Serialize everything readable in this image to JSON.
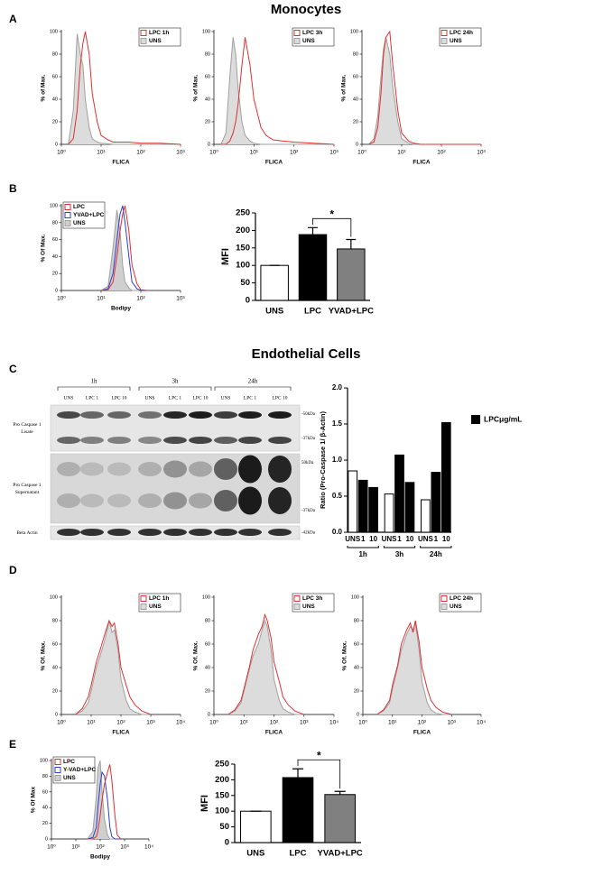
{
  "figure": {
    "headings": [
      "Monocytes",
      "Endothelial Cells"
    ],
    "panels": [
      "A",
      "B",
      "C",
      "D",
      "E"
    ]
  },
  "blot": {
    "time_points": [
      "1h",
      "3h",
      "24h"
    ],
    "lanes": [
      "UNS",
      "LPC 1",
      "LPC 10",
      "UNS",
      "LPC 1",
      "LPC 10",
      "UNS",
      "LPC 1",
      "LPC 10"
    ],
    "rows": [
      {
        "label": [
          "Pro Caspase 1",
          "Lisate"
        ],
        "markers": [
          "-50kDa",
          "-37kDa"
        ]
      },
      {
        "label": [
          "Pro Caspase 1",
          "Supernatant"
        ],
        "markers": [
          "50kDa",
          "-37kDa"
        ]
      },
      {
        "label": [
          "Beta Actin"
        ],
        "markers": [
          "-42kDa"
        ]
      }
    ]
  },
  "chart_data": [
    {
      "type": "line",
      "xlog": true,
      "xlabel": "FLICA",
      "ylabel": "% of Max.",
      "legend": "upper right",
      "xlim": [
        1,
        1000
      ],
      "xticks": [
        {
          "value": 1,
          "label": "10⁰"
        },
        {
          "value": 10,
          "label": "10¹"
        },
        {
          "value": 100,
          "label": "10²"
        },
        {
          "value": 1000,
          "label": "10³"
        }
      ],
      "ylim": [
        0,
        100
      ],
      "yticks": [
        0,
        20,
        40,
        60,
        80,
        100
      ],
      "x": [
        1.5,
        2,
        2.5,
        3,
        3.5,
        4,
        5,
        6,
        8,
        10,
        15,
        20,
        30,
        50,
        100,
        300,
        1000
      ],
      "series": [
        {
          "name": "LPC 1h",
          "color": "#e03030",
          "values": [
            0,
            5,
            30,
            70,
            90,
            100,
            80,
            45,
            20,
            8,
            4,
            2,
            2,
            2,
            1,
            1,
            0
          ]
        },
        {
          "name": "UNS",
          "color": "#a0a0a0",
          "fill": "#dcdcdc",
          "values": [
            0,
            30,
            98,
            80,
            70,
            40,
            15,
            5,
            2,
            1,
            0.5,
            0,
            0,
            0,
            0,
            0,
            0
          ]
        }
      ]
    },
    {
      "type": "line",
      "xlog": true,
      "xlabel": "FLICA",
      "ylabel": "% of Max.",
      "legend": "upper right",
      "xlim": [
        1,
        1000
      ],
      "xticks": [
        {
          "value": 1,
          "label": "10⁰"
        },
        {
          "value": 10,
          "label": "10¹"
        },
        {
          "value": 100,
          "label": "10²"
        },
        {
          "value": 1000,
          "label": "10³"
        }
      ],
      "ylim": [
        0,
        100
      ],
      "yticks": [
        0,
        20,
        40,
        60,
        80,
        100
      ],
      "x": [
        1.5,
        2,
        2.5,
        3,
        3.5,
        4,
        5,
        6,
        8,
        10,
        15,
        20,
        30,
        50,
        100,
        300,
        1000
      ],
      "series": [
        {
          "name": "LPC 3h",
          "color": "#e03030",
          "values": [
            0,
            0,
            3,
            10,
            20,
            35,
            70,
            95,
            70,
            40,
            15,
            8,
            4,
            3,
            2,
            1,
            0
          ]
        },
        {
          "name": "UNS",
          "color": "#a0a0a0",
          "fill": "#dcdcdc",
          "values": [
            0,
            10,
            60,
            95,
            80,
            50,
            20,
            8,
            3,
            1,
            0,
            0,
            0,
            0,
            0,
            0,
            0
          ]
        }
      ]
    },
    {
      "type": "line",
      "xlog": true,
      "xlabel": "FLICA",
      "ylabel": "% of Max.",
      "legend": "upper right",
      "xlim": [
        1,
        1000
      ],
      "xticks": [
        {
          "value": 1,
          "label": "10⁰"
        },
        {
          "value": 10,
          "label": "10¹"
        },
        {
          "value": 100,
          "label": "10²"
        },
        {
          "value": 1000,
          "label": "10³"
        }
      ],
      "ylim": [
        0,
        100
      ],
      "yticks": [
        0,
        20,
        40,
        60,
        80,
        100
      ],
      "x": [
        1.5,
        2,
        2.5,
        3,
        3.5,
        4,
        5,
        6,
        8,
        10,
        15,
        20,
        30,
        50,
        100,
        300,
        1000
      ],
      "series": [
        {
          "name": "LPC 24h",
          "color": "#e03030",
          "values": [
            0,
            2,
            15,
            45,
            80,
            95,
            100,
            70,
            30,
            10,
            3,
            1,
            0,
            0,
            0,
            0,
            0
          ]
        },
        {
          "name": "UNS",
          "color": "#a0a0a0",
          "fill": "#dcdcdc",
          "values": [
            0,
            5,
            25,
            60,
            85,
            95,
            80,
            50,
            20,
            5,
            1,
            0,
            0,
            0,
            0,
            0,
            0
          ]
        }
      ]
    },
    {
      "type": "line",
      "xlog": true,
      "xlabel": "Bodipy",
      "ylabel": "% Of Max.",
      "legend": "upper left",
      "xlim": [
        1,
        1000
      ],
      "xticks": [
        {
          "value": 1,
          "label": "10⁰"
        },
        {
          "value": 10,
          "label": "10¹"
        },
        {
          "value": 100,
          "label": "10²"
        },
        {
          "value": 1000,
          "label": "10³"
        }
      ],
      "ylim": [
        0,
        100
      ],
      "yticks": [
        0,
        20,
        40,
        60,
        80,
        100
      ],
      "x": [
        10,
        15,
        20,
        25,
        30,
        35,
        40,
        50,
        60,
        80,
        100,
        150
      ],
      "series": [
        {
          "name": "LPC",
          "color": "#e03030",
          "values": [
            0,
            1,
            10,
            40,
            70,
            90,
            100,
            70,
            30,
            8,
            1,
            0
          ]
        },
        {
          "name": "YVAD+LPC",
          "color": "#2b3fd6",
          "values": [
            0,
            2,
            20,
            60,
            90,
            100,
            80,
            40,
            10,
            2,
            0,
            0
          ]
        },
        {
          "name": "UNS",
          "color": "#a0a0a0",
          "fill": "#cfcfcf",
          "values": [
            0,
            5,
            50,
            95,
            70,
            30,
            10,
            3,
            0,
            0,
            0,
            0
          ]
        }
      ]
    },
    {
      "type": "bar",
      "ylabel": "MFI",
      "categories": [
        "UNS",
        "LPC",
        "YVAD+LPC"
      ],
      "values": [
        100,
        188,
        147
      ],
      "errors": [
        0,
        20,
        27
      ],
      "colors": [
        "#ffffff",
        "#000000",
        "#808080"
      ],
      "ylim": [
        0,
        250
      ],
      "yticks": [
        0,
        50,
        100,
        150,
        200,
        250
      ],
      "significance": {
        "label": "*",
        "between": [
          "LPC",
          "YVAD+LPC"
        ]
      }
    },
    {
      "type": "bar",
      "ylabel": "Ratio (Pro-Caspase 1/ β-Actin)",
      "categories": [
        "UNS",
        "1",
        "10",
        "UNS",
        "1",
        "10",
        "UNS",
        "1",
        "10"
      ],
      "groups": [
        "1h",
        "3h",
        "24h"
      ],
      "values": [
        0.85,
        0.72,
        0.62,
        0.53,
        1.07,
        0.69,
        0.45,
        0.83,
        1.52
      ],
      "colors": [
        "#ffffff",
        "#000000",
        "#000000",
        "#ffffff",
        "#000000",
        "#000000",
        "#ffffff",
        "#000000",
        "#000000"
      ],
      "legend_item": {
        "label": "LPCμg/mL",
        "color": "#000000"
      },
      "ylim": [
        0,
        2
      ],
      "yticks": [
        {
          "value": 0,
          "label": "0.0"
        },
        0.5,
        {
          "value": 1,
          "label": "1.0"
        },
        1.5,
        {
          "value": 2,
          "label": "2.0"
        }
      ]
    },
    {
      "type": "line",
      "xlog": true,
      "xlabel": "FLICA",
      "ylabel": "% Of. Max.",
      "legend": "upper right",
      "xlim": [
        1,
        10000
      ],
      "xticks": [
        {
          "value": 1,
          "label": "10⁰"
        },
        {
          "value": 10,
          "label": "10¹"
        },
        {
          "value": 100,
          "label": "10²"
        },
        {
          "value": 1000,
          "label": "10³"
        },
        {
          "value": 10000,
          "label": "10⁴"
        }
      ],
      "ylim": [
        0,
        100
      ],
      "yticks": [
        0,
        20,
        40,
        60,
        80,
        100
      ],
      "x": [
        3,
        5,
        8,
        10,
        15,
        20,
        30,
        40,
        50,
        60,
        80,
        100,
        150,
        200,
        300,
        500,
        1000
      ],
      "series": [
        {
          "name": "LPC 1h",
          "color": "#e03030",
          "values": [
            0,
            5,
            15,
            25,
            45,
            55,
            70,
            80,
            75,
            78,
            60,
            40,
            25,
            15,
            8,
            3,
            0
          ]
        },
        {
          "name": "UNS",
          "color": "#a0a0a0",
          "fill": "#dcdcdc",
          "values": [
            0,
            3,
            10,
            20,
            40,
            50,
            65,
            80,
            70,
            72,
            55,
            30,
            12,
            5,
            2,
            0,
            0
          ]
        }
      ]
    },
    {
      "type": "line",
      "xlog": true,
      "xlabel": "FLICA",
      "ylabel": "% Of. Max.",
      "legend": "upper right",
      "xlim": [
        1,
        10000
      ],
      "xticks": [
        {
          "value": 1,
          "label": "10⁰"
        },
        {
          "value": 10,
          "label": "10¹"
        },
        {
          "value": 100,
          "label": "10²"
        },
        {
          "value": 1000,
          "label": "10³"
        },
        {
          "value": 10000,
          "label": "10⁴"
        }
      ],
      "ylim": [
        0,
        100
      ],
      "yticks": [
        0,
        20,
        40,
        60,
        80,
        100
      ],
      "x": [
        3,
        5,
        8,
        10,
        15,
        20,
        30,
        40,
        50,
        60,
        80,
        100,
        150,
        200,
        300,
        500,
        1000
      ],
      "series": [
        {
          "name": "LPC 3h",
          "color": "#e03030",
          "values": [
            0,
            4,
            12,
            22,
            40,
            55,
            68,
            75,
            85,
            80,
            65,
            45,
            28,
            15,
            8,
            3,
            0
          ]
        },
        {
          "name": "UNS",
          "color": "#a0a0a0",
          "fill": "#dcdcdc",
          "values": [
            0,
            3,
            10,
            20,
            38,
            50,
            60,
            72,
            80,
            75,
            55,
            30,
            12,
            5,
            2,
            0,
            0
          ]
        }
      ]
    },
    {
      "type": "line",
      "xlog": true,
      "xlabel": "FLICA",
      "ylabel": "% Of. Max.",
      "legend": "upper right",
      "xlim": [
        1,
        10000
      ],
      "xticks": [
        {
          "value": 1,
          "label": "10⁰"
        },
        {
          "value": 10,
          "label": "10¹"
        },
        {
          "value": 100,
          "label": "10²"
        },
        {
          "value": 1000,
          "label": "10³"
        },
        {
          "value": 10000,
          "label": "10⁴"
        }
      ],
      "ylim": [
        0,
        100
      ],
      "yticks": [
        0,
        20,
        40,
        60,
        80,
        100
      ],
      "x": [
        3,
        5,
        8,
        10,
        15,
        20,
        30,
        40,
        50,
        60,
        80,
        100,
        150,
        200,
        300,
        500,
        1000
      ],
      "series": [
        {
          "name": "LPC 24h",
          "color": "#e03030",
          "values": [
            0,
            4,
            12,
            25,
            42,
            60,
            72,
            78,
            70,
            80,
            62,
            40,
            22,
            12,
            6,
            2,
            0
          ]
        },
        {
          "name": "UNS",
          "color": "#a0a0a0",
          "fill": "#dcdcdc",
          "values": [
            0,
            3,
            10,
            22,
            40,
            55,
            68,
            75,
            72,
            78,
            55,
            28,
            10,
            4,
            1,
            0,
            0
          ]
        }
      ]
    },
    {
      "type": "line",
      "xlog": true,
      "xlabel": "Bodipy",
      "ylabel": "% Of Max",
      "legend": "upper left",
      "xlim": [
        1,
        10000
      ],
      "xticks": [
        {
          "value": 1,
          "label": "10⁰"
        },
        {
          "value": 10,
          "label": "10¹"
        },
        {
          "value": 100,
          "label": "10²"
        },
        {
          "value": 1000,
          "label": "10³"
        },
        {
          "value": 10000,
          "label": "10⁴"
        }
      ],
      "ylim": [
        0,
        100
      ],
      "yticks": [
        0,
        20,
        40,
        60,
        80,
        100
      ],
      "x": [
        30,
        50,
        70,
        80,
        100,
        120,
        150,
        200,
        250,
        300,
        400,
        500,
        700
      ],
      "series": [
        {
          "name": "LPC",
          "color": "#e03030",
          "values": [
            0,
            0,
            3,
            10,
            30,
            50,
            70,
            85,
            95,
            75,
            30,
            5,
            0
          ]
        },
        {
          "name": "Y-VAD+LPC",
          "color": "#2b3fd6",
          "values": [
            0,
            2,
            15,
            40,
            70,
            85,
            80,
            50,
            15,
            3,
            0,
            0,
            0
          ]
        },
        {
          "name": "UNS",
          "color": "#a0a0a0",
          "fill": "#cfcfcf",
          "values": [
            0,
            10,
            55,
            90,
            100,
            60,
            25,
            5,
            0,
            0,
            0,
            0,
            0
          ]
        }
      ]
    },
    {
      "type": "bar",
      "ylabel": "MFI",
      "categories": [
        "UNS",
        "LPC",
        "YVAD+LPC"
      ],
      "values": [
        100,
        207,
        153
      ],
      "errors": [
        0,
        28,
        10
      ],
      "colors": [
        "#ffffff",
        "#000000",
        "#808080"
      ],
      "ylim": [
        0,
        250
      ],
      "yticks": [
        0,
        50,
        100,
        150,
        200,
        250
      ],
      "significance": {
        "label": "*",
        "between": [
          "LPC",
          "YVAD+LPC"
        ]
      }
    }
  ]
}
